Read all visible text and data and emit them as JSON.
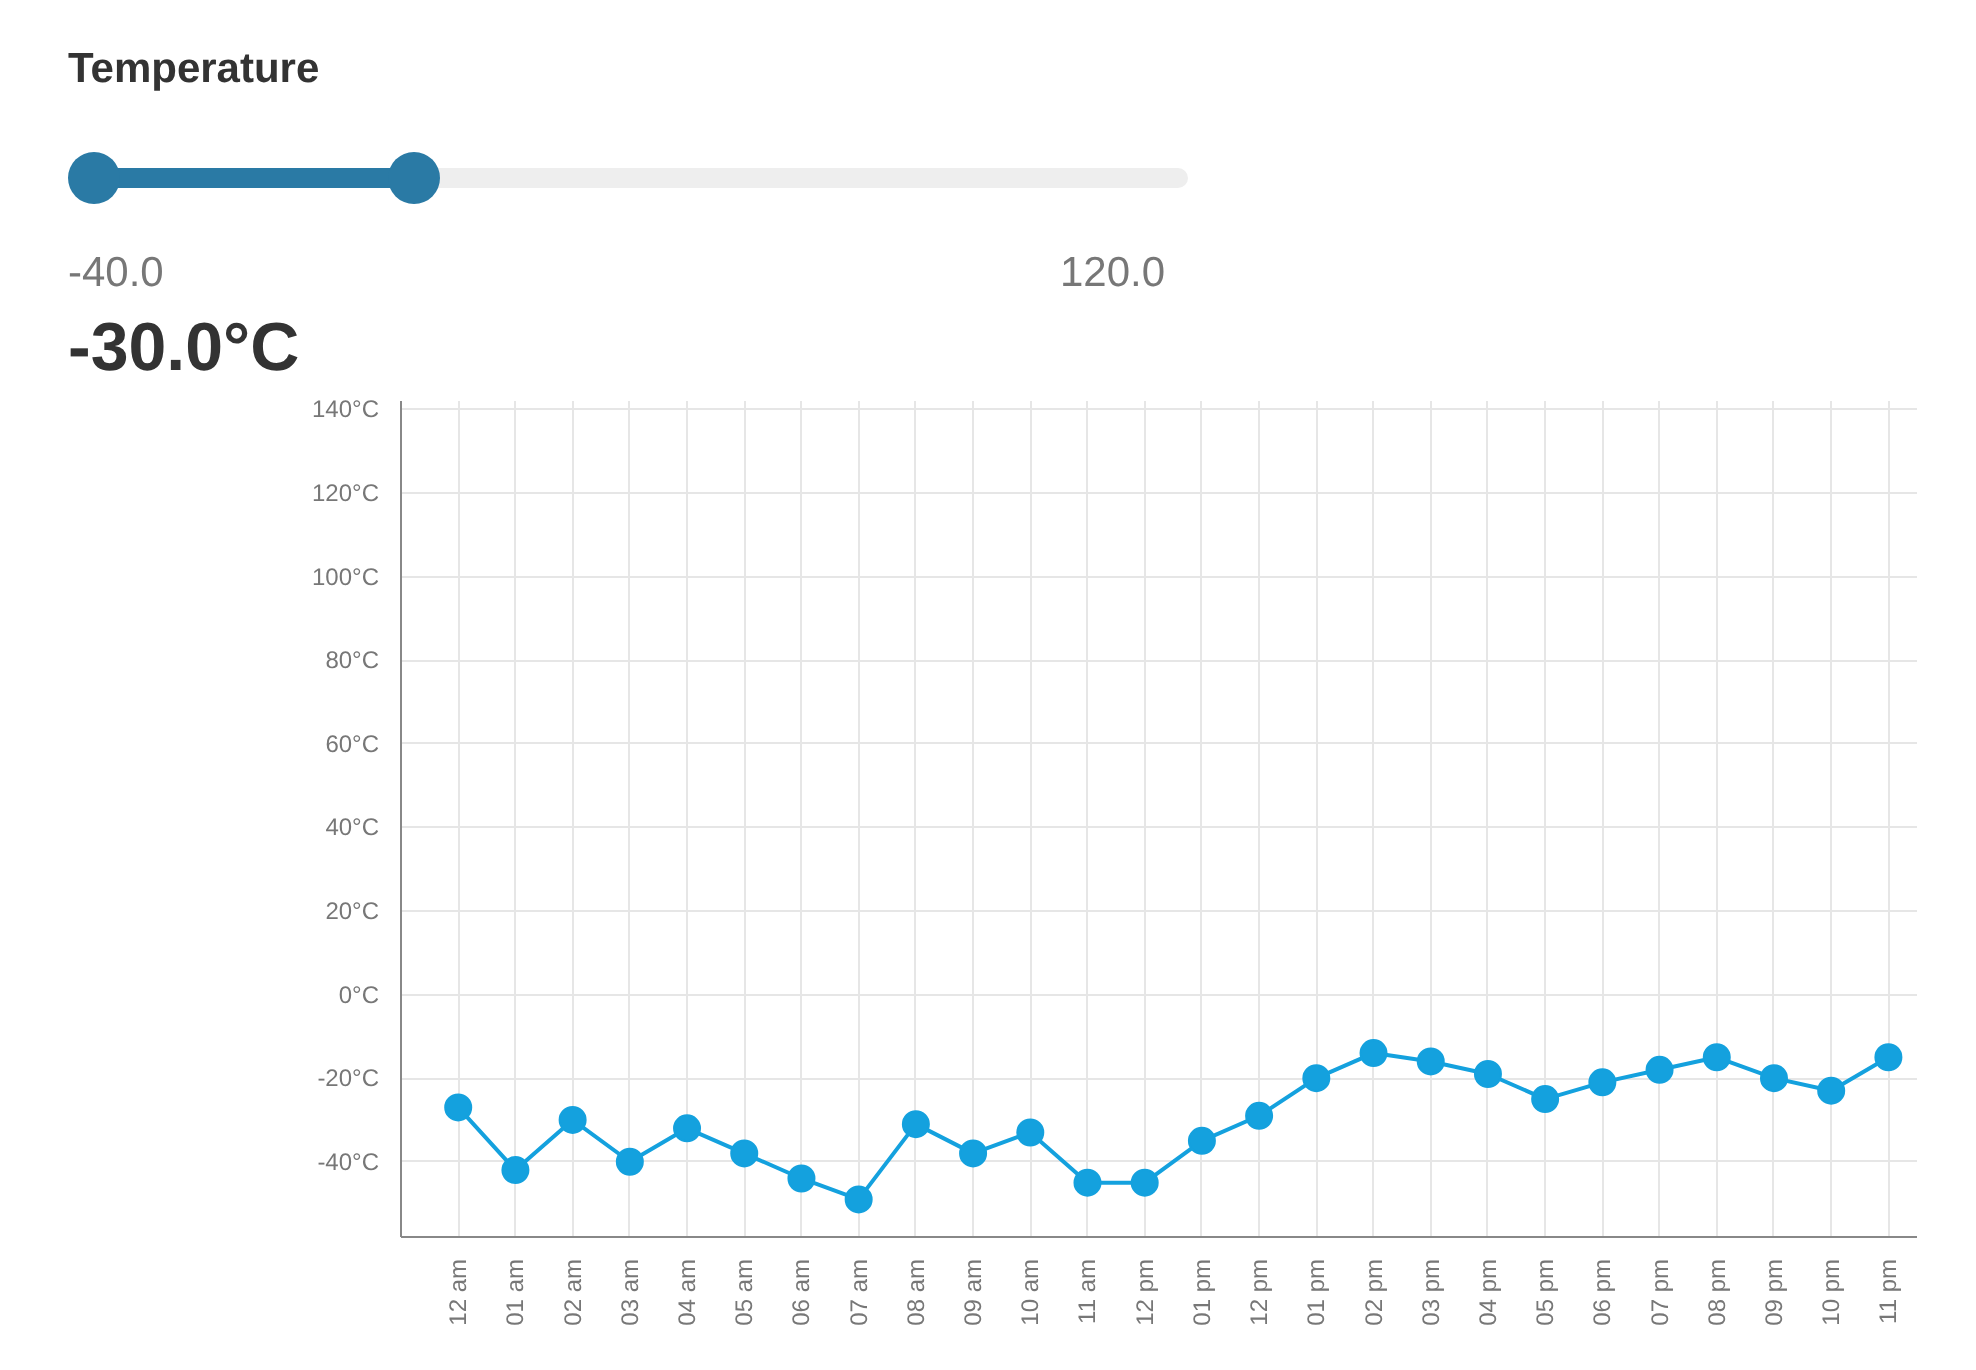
{
  "chart_data": {
    "type": "line",
    "annotations": [
      "Temperature",
      "-40.0",
      "120.0",
      "-30.0°C"
    ],
    "categories": [
      "12 am",
      "01 am",
      "02 am",
      "03 am",
      "04 am",
      "05 am",
      "06 am",
      "07 am",
      "08 am",
      "09 am",
      "10 am",
      "11 am",
      "12 pm",
      "01 pm",
      "12 pm",
      "01 pm",
      "02 pm",
      "03 pm",
      "04 pm",
      "05 pm",
      "06 pm",
      "07 pm",
      "08 pm",
      "09 pm",
      "10 pm",
      "11 pm"
    ],
    "series": [
      {
        "color": "#14a1de",
        "values": [
          -27,
          -42,
          -30,
          -40,
          -32,
          -38,
          -44,
          -49,
          -31,
          -38,
          -33,
          -45,
          -45,
          -35,
          -29,
          -20,
          -14,
          -16,
          -19,
          -25,
          -21,
          -18,
          -15,
          -20,
          -23,
          -15
        ]
      }
    ],
    "ylim": [
      -58,
      142
    ],
    "yticks": [
      {
        "value": -40,
        "label": "-40°C"
      },
      {
        "value": -20,
        "label": "-20°C"
      },
      {
        "value": 0,
        "label": "0°C"
      },
      {
        "value": 20,
        "label": "20°C"
      },
      {
        "value": 40,
        "label": "40°C"
      },
      {
        "value": 60,
        "label": "60°C"
      },
      {
        "value": 80,
        "label": "80°C"
      },
      {
        "value": 100,
        "label": "100°C"
      },
      {
        "value": 120,
        "label": "120°C"
      },
      {
        "value": 140,
        "label": "140°C"
      }
    ],
    "grid": true,
    "marker": "circle",
    "line_style": "solid"
  }
}
